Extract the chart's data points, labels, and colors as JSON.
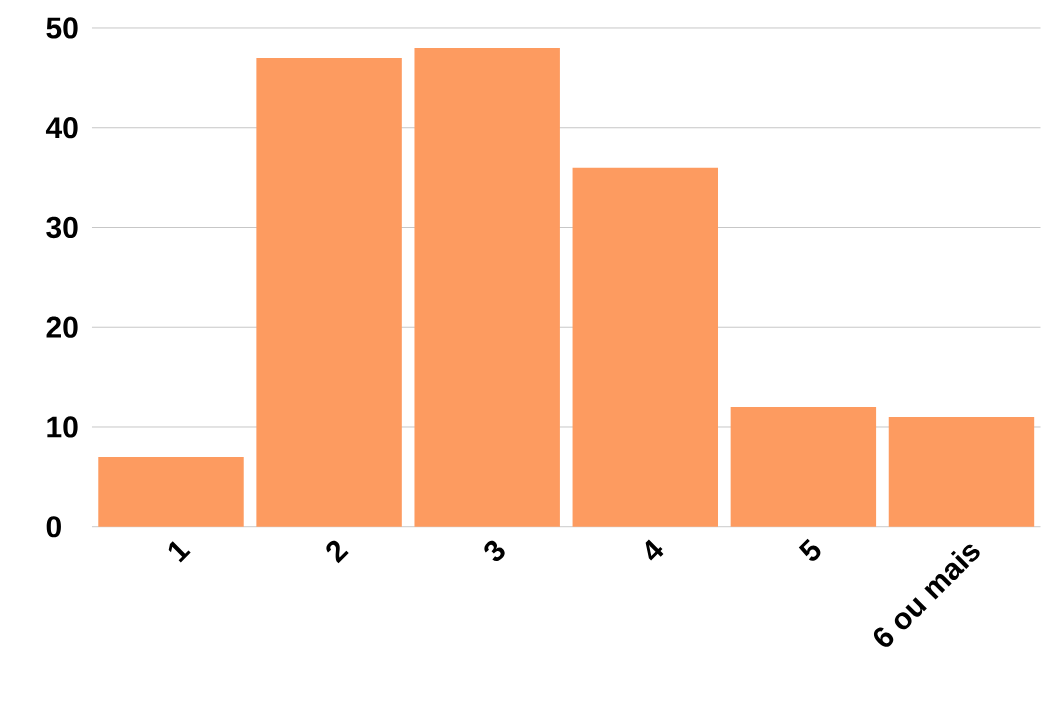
{
  "chart_data": {
    "type": "bar",
    "categories": [
      "1",
      "2",
      "3",
      "4",
      "5",
      "6 ou mais"
    ],
    "values": [
      7,
      47,
      48,
      36,
      12,
      11
    ],
    "color": "#fd9b60",
    "ylim": [
      0,
      50
    ],
    "yticks": [
      0,
      10,
      20,
      30,
      40,
      50
    ],
    "grid": "y"
  }
}
